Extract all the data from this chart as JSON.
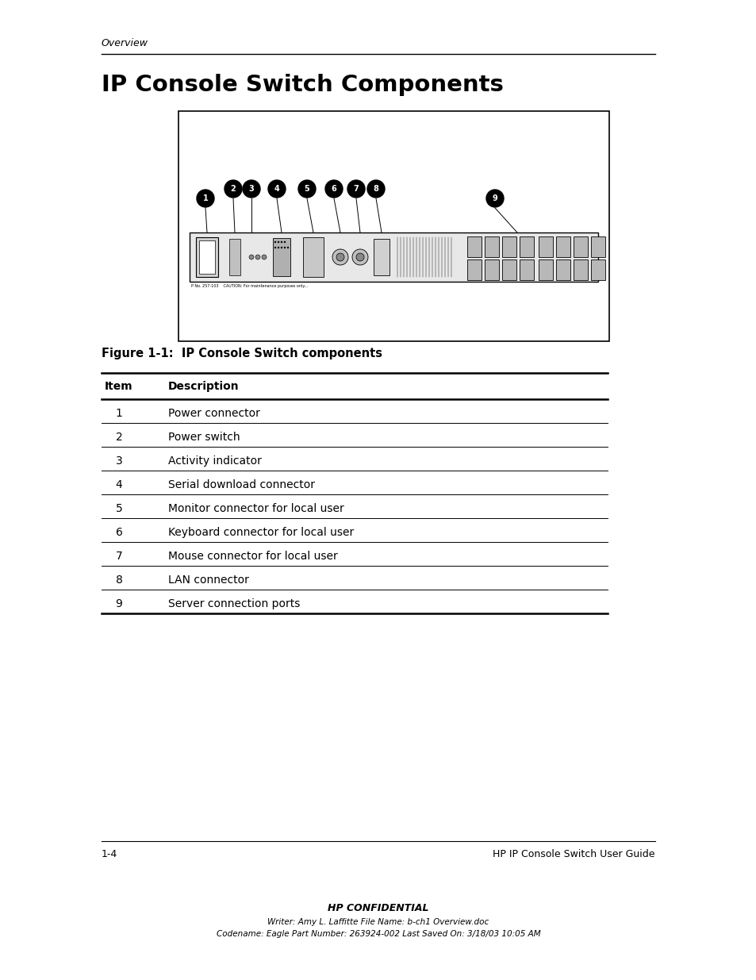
{
  "page_header_text": "Overview",
  "title": "IP Console Switch Components",
  "figure_caption": "Figure 1-1:  IP Console Switch components",
  "table_header_item": "Item",
  "table_header_desc": "Description",
  "table_rows": [
    [
      "1",
      "Power connector"
    ],
    [
      "2",
      "Power switch"
    ],
    [
      "3",
      "Activity indicator"
    ],
    [
      "4",
      "Serial download connector"
    ],
    [
      "5",
      "Monitor connector for local user"
    ],
    [
      "6",
      "Keyboard connector for local user"
    ],
    [
      "7",
      "Mouse connector for local user"
    ],
    [
      "8",
      "LAN connector"
    ],
    [
      "9",
      "Server connection ports"
    ]
  ],
  "footer_left": "1-4",
  "footer_right": "HP IP Console Switch User Guide",
  "confidential_line1": "HP CONFIDENTIAL",
  "confidential_line2": "Writer: Amy L. Laffitte File Name: b-ch1 Overview.doc",
  "confidential_line3": "Codename: Eagle Part Number: 263924-002 Last Saved On: 3/18/03 10:05 AM",
  "bg_color": "#ffffff",
  "text_color": "#000000"
}
